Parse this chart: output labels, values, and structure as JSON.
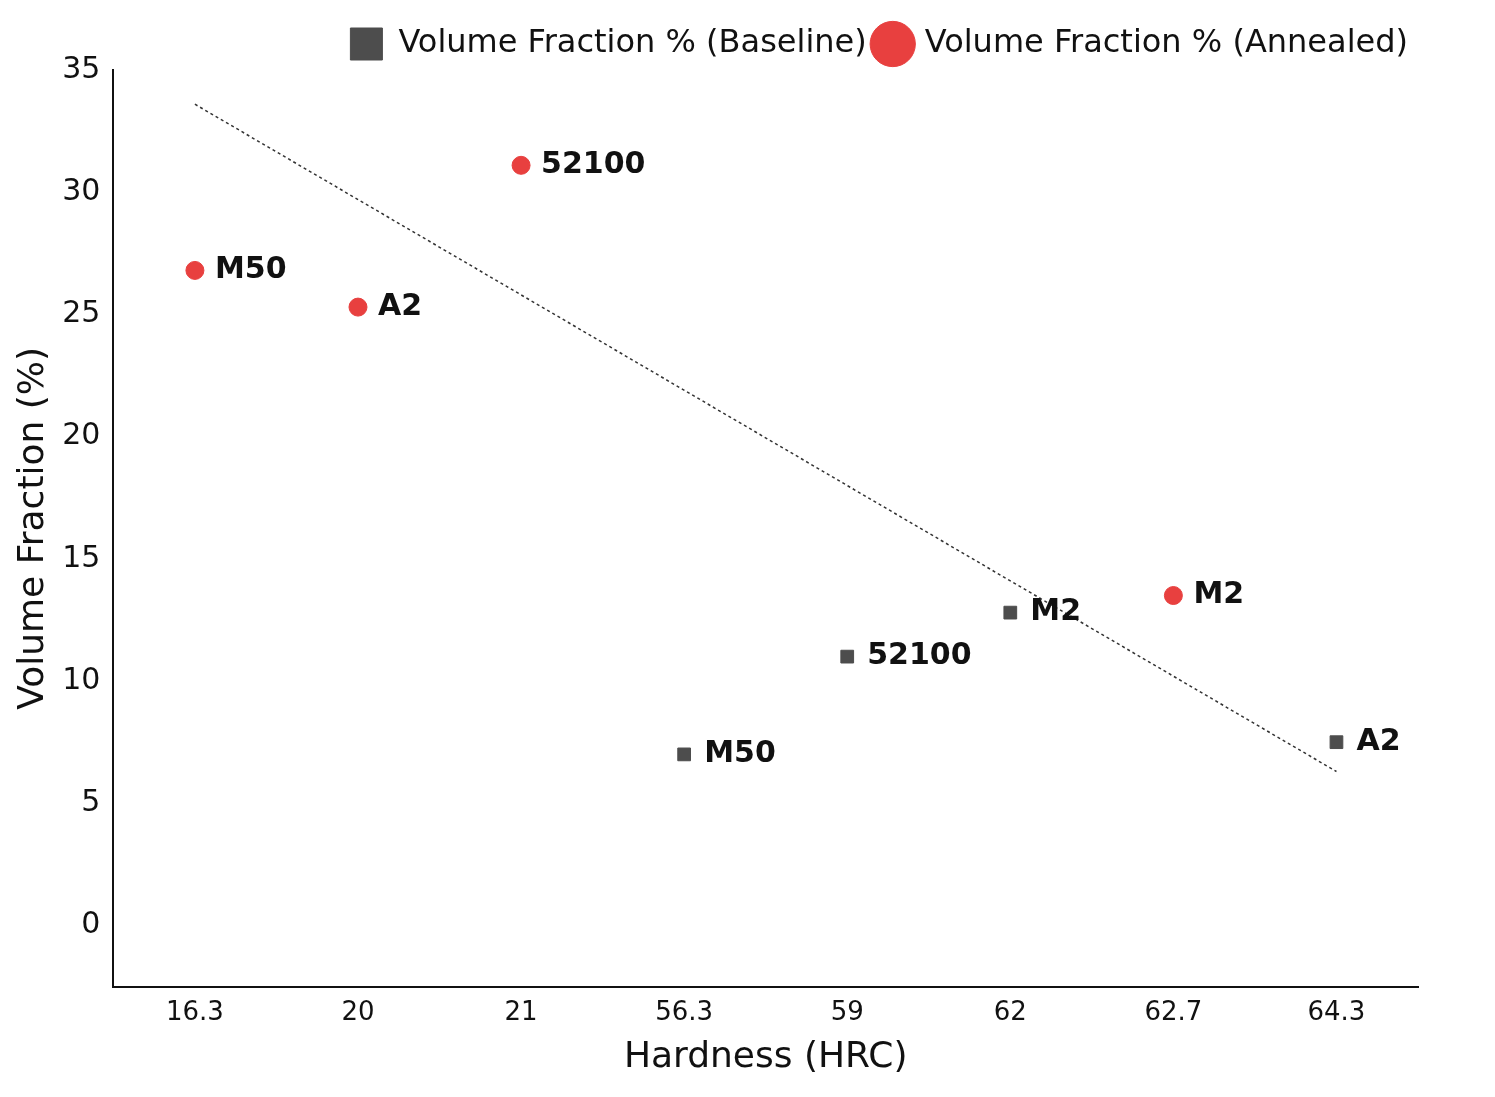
{
  "chart_data": {
    "type": "scatter",
    "xlabel": "Hardness (HRC)",
    "ylabel": "Volume Fraction (%)",
    "categories": [
      "16.3",
      "20",
      "21",
      "56.3",
      "59",
      "62",
      "62.7",
      "64.3"
    ],
    "series": [
      {
        "name": "Volume Fraction % (Baseline)",
        "color": "#4d4d4d",
        "marker": "square",
        "values": [
          null,
          null,
          null,
          7.0,
          11.0,
          12.8,
          null,
          7.5
        ]
      },
      {
        "name": "Volume Fraction % (Annealed)",
        "color": "#e8403f",
        "marker": "circle",
        "values": [
          26.8,
          25.3,
          31.1,
          null,
          null,
          null,
          13.5,
          null
        ]
      },
      {
        "type": "line",
        "color": "#333333",
        "line_style": "dotted",
        "marker": "none",
        "values": [
          33.6,
          null,
          null,
          null,
          null,
          null,
          null,
          6.3
        ]
      }
    ],
    "ylim": [
      -2.5,
      35
    ],
    "yticks": [
      0,
      5,
      10,
      15,
      20,
      25,
      30,
      35
    ],
    "grid": false,
    "legend": "top right",
    "annotations": [
      {
        "text": "M50",
        "x": "16.3",
        "y": 26.8
      },
      {
        "text": "A2",
        "x": "20",
        "y": 25.3
      },
      {
        "text": "52100",
        "x": "21",
        "y": 31.1
      },
      {
        "text": "M2",
        "x": "62.7",
        "y": 13.5
      },
      {
        "text": "M50",
        "x": "56.3",
        "y": 7.0
      },
      {
        "text": "52100",
        "x": "59",
        "y": 11.0
      },
      {
        "text": "M2",
        "x": "62",
        "y": 12.8
      },
      {
        "text": "A2",
        "x": "64.3",
        "y": 7.5
      }
    ]
  }
}
